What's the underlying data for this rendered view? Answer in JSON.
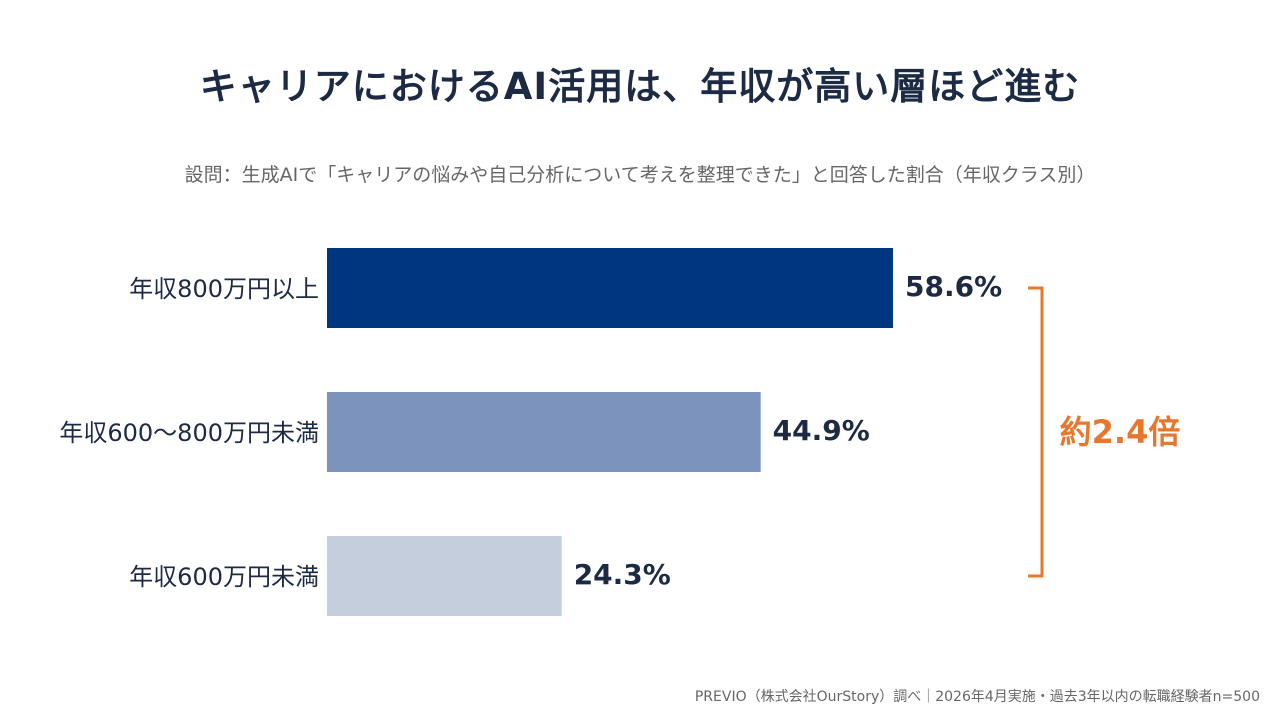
{
  "title": "キャリアにおけるAI活用は、年収が高い層ほど進む",
  "subtitle": "設問：生成AIで「キャリアの悩みや自己分析について考えを整理できた」と回答した割合（年収クラス別）",
  "source": "PREVIO（株式会社OurStory）調べ｜2026年4月実施・過去3年以内の転職経験者n=500",
  "colors": {
    "bar_high": "#003580",
    "bar_mid": "#7b93bd",
    "bar_low": "#c5cedd",
    "accent": "#e8772e"
  },
  "chart_data": {
    "type": "bar",
    "orientation": "horizontal",
    "categories": [
      "年収800万円以上",
      "年収600〜800万円未満",
      "年収600万円未満"
    ],
    "values": [
      58.6,
      44.9,
      24.3
    ],
    "value_labels": [
      "58.6%",
      "44.9%",
      "24.3%"
    ],
    "bar_colors": [
      "#003580",
      "#7b93bd",
      "#c5cedd"
    ],
    "unit": "%",
    "annotation": "約2.4倍",
    "annotation_color": "#e8772e",
    "grid": false,
    "legend": "none"
  }
}
